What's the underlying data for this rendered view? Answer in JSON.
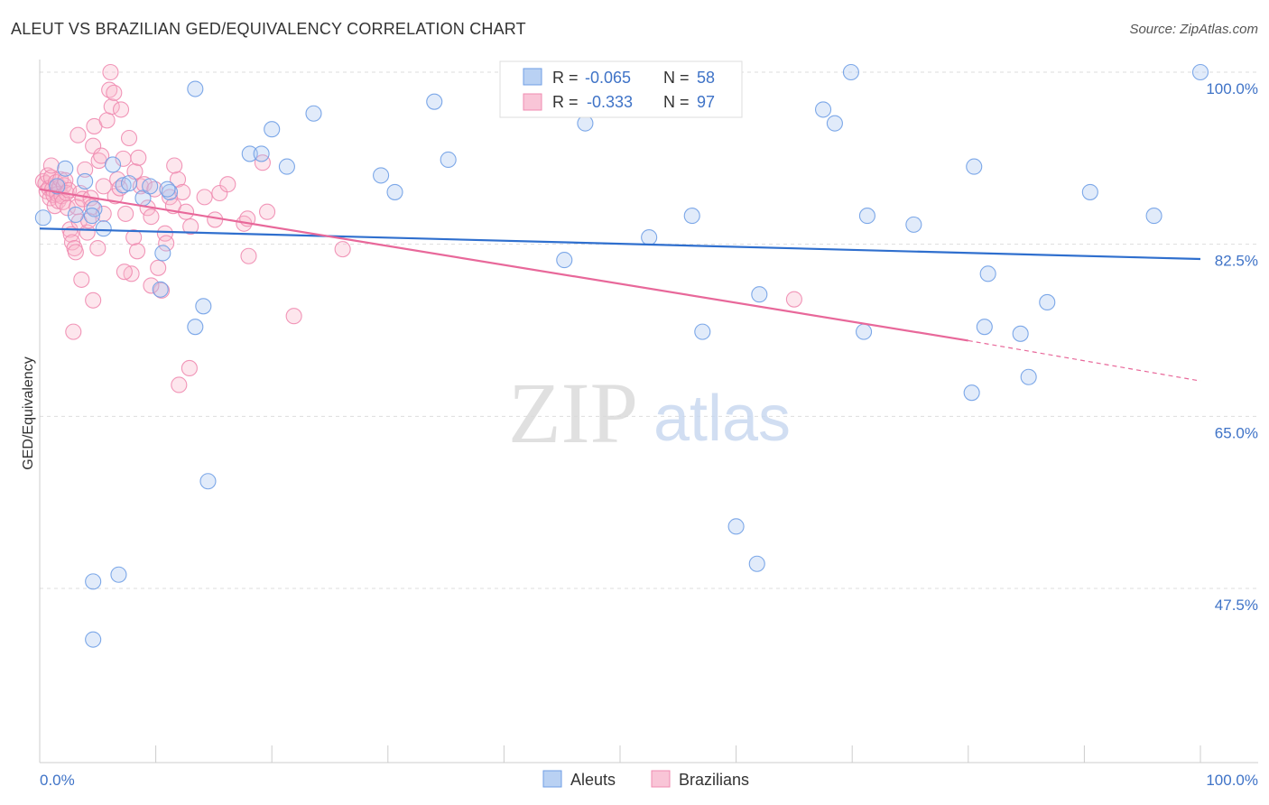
{
  "title": "ALEUT VS BRAZILIAN GED/EQUIVALENCY CORRELATION CHART",
  "source": "Source: ZipAtlas.com",
  "watermark": {
    "zip": "ZIP",
    "atlas": "atlas"
  },
  "colors": {
    "aleut": "#6f9ee6",
    "aleut_line": "#2f6fce",
    "brazil": "#f08bb0",
    "brazil_line": "#e8689a",
    "label_blue": "#3f73c7",
    "grid": "#dddddd"
  },
  "legend_top": [
    {
      "r_label": "R =",
      "r_value": "-0.065",
      "n_label": "N =",
      "n_value": "58"
    },
    {
      "r_label": "R =",
      "r_value": "-0.333",
      "n_label": "N =",
      "n_value": "97"
    }
  ],
  "chart_data": {
    "type": "scatter",
    "title": "ALEUT VS BRAZILIAN GED/EQUIVALENCY CORRELATION CHART",
    "xlabel": "",
    "ylabel": "GED/Equivalency",
    "xlim": [
      0,
      100
    ],
    "ylim": [
      31.5,
      102
    ],
    "x_tick_labels": [
      "0.0%",
      "100.0%"
    ],
    "y_ticks": [
      47.5,
      65.0,
      82.5,
      100.0
    ],
    "y_tick_labels": [
      "47.5%",
      "65.0%",
      "82.5%",
      "100.0%"
    ],
    "grid": true,
    "legend_placement": "bottom-center",
    "series": [
      {
        "name": "Aleuts",
        "r": -0.065,
        "n": 58,
        "trend": {
          "x": [
            0,
            100
          ],
          "y": [
            84.1,
            81.0
          ]
        },
        "points": [
          [
            13.4,
            98.3
          ],
          [
            0.3,
            85.2
          ],
          [
            1.5,
            88.4
          ],
          [
            2.2,
            90.2
          ],
          [
            3.1,
            85.5
          ],
          [
            3.9,
            88.9
          ],
          [
            4.7,
            86.1
          ],
          [
            5.5,
            84.1
          ],
          [
            6.3,
            90.6
          ],
          [
            7.2,
            88.5
          ],
          [
            7.7,
            88.7
          ],
          [
            8.9,
            87.2
          ],
          [
            9.5,
            88.4
          ],
          [
            10.6,
            81.6
          ],
          [
            11.2,
            87.8
          ],
          [
            13.4,
            74.1
          ],
          [
            14.1,
            76.2
          ],
          [
            14.5,
            58.4
          ],
          [
            10.4,
            77.9
          ],
          [
            18.1,
            91.7
          ],
          [
            19.1,
            91.7
          ],
          [
            20.0,
            94.2
          ],
          [
            21.3,
            90.4
          ],
          [
            23.6,
            95.8
          ],
          [
            29.4,
            89.5
          ],
          [
            30.6,
            87.8
          ],
          [
            34.0,
            97.0
          ],
          [
            35.2,
            91.1
          ],
          [
            47.0,
            94.8
          ],
          [
            45.2,
            80.9
          ],
          [
            52.5,
            83.2
          ],
          [
            56.2,
            85.4
          ],
          [
            57.0,
            100.0
          ],
          [
            57.1,
            73.6
          ],
          [
            60.0,
            53.8
          ],
          [
            61.8,
            50.0
          ],
          [
            62.0,
            77.4
          ],
          [
            67.5,
            96.2
          ],
          [
            68.5,
            94.8
          ],
          [
            69.9,
            100.0
          ],
          [
            71.0,
            73.6
          ],
          [
            71.3,
            85.4
          ],
          [
            75.3,
            84.5
          ],
          [
            81.4,
            74.1
          ],
          [
            80.3,
            67.4
          ],
          [
            80.5,
            90.4
          ],
          [
            81.7,
            79.5
          ],
          [
            84.5,
            73.4
          ],
          [
            85.2,
            69.0
          ],
          [
            86.8,
            76.6
          ],
          [
            90.5,
            87.8
          ],
          [
            96.0,
            85.4
          ],
          [
            100,
            100.0
          ],
          [
            4.5,
            85.4
          ],
          [
            4.6,
            48.2
          ],
          [
            6.8,
            48.9
          ],
          [
            4.6,
            42.3
          ],
          [
            11.0,
            88.1
          ]
        ]
      },
      {
        "name": "Brazilians",
        "r": -0.333,
        "n": 97,
        "trend": {
          "x": [
            0,
            80
          ],
          "y": [
            88.1,
            72.7
          ]
        },
        "trend_dashed": {
          "x": [
            80,
            100
          ],
          "y": [
            72.7,
            68.6
          ]
        },
        "points": [
          [
            0.3,
            88.9
          ],
          [
            0.5,
            88.7
          ],
          [
            0.6,
            87.9
          ],
          [
            0.7,
            89.5
          ],
          [
            0.8,
            88.2
          ],
          [
            0.9,
            87.2
          ],
          [
            1.0,
            89.3
          ],
          [
            1.1,
            88.1
          ],
          [
            1.2,
            87.5
          ],
          [
            1.3,
            86.4
          ],
          [
            1.4,
            88.8
          ],
          [
            1.5,
            87.6
          ],
          [
            1.6,
            86.9
          ],
          [
            1.7,
            88.3
          ],
          [
            1.8,
            89.1
          ],
          [
            1.9,
            87.4
          ],
          [
            2.0,
            86.8
          ],
          [
            2.1,
            88.5
          ],
          [
            2.2,
            89.0
          ],
          [
            2.3,
            87.7
          ],
          [
            2.4,
            86.2
          ],
          [
            2.5,
            88.0
          ],
          [
            2.6,
            84.0
          ],
          [
            2.7,
            83.5
          ],
          [
            2.8,
            82.7
          ],
          [
            3.0,
            82.1
          ],
          [
            3.1,
            81.7
          ],
          [
            3.2,
            86.3
          ],
          [
            3.4,
            84.8
          ],
          [
            3.5,
            87.7
          ],
          [
            3.6,
            78.9
          ],
          [
            3.7,
            87.1
          ],
          [
            3.9,
            90.1
          ],
          [
            4.1,
            83.7
          ],
          [
            4.2,
            84.9
          ],
          [
            4.4,
            87.2
          ],
          [
            4.5,
            86.3
          ],
          [
            4.6,
            92.5
          ],
          [
            4.7,
            94.5
          ],
          [
            5.0,
            82.1
          ],
          [
            5.1,
            91.0
          ],
          [
            5.3,
            91.5
          ],
          [
            5.5,
            85.6
          ],
          [
            5.8,
            95.1
          ],
          [
            6.0,
            98.2
          ],
          [
            6.2,
            96.5
          ],
          [
            6.5,
            87.4
          ],
          [
            6.7,
            89.1
          ],
          [
            6.9,
            88.2
          ],
          [
            7.2,
            91.2
          ],
          [
            7.4,
            85.6
          ],
          [
            7.7,
            93.3
          ],
          [
            7.9,
            79.5
          ],
          [
            8.1,
            83.2
          ],
          [
            8.4,
            81.8
          ],
          [
            8.7,
            88.4
          ],
          [
            9.0,
            88.6
          ],
          [
            9.3,
            86.2
          ],
          [
            9.6,
            85.3
          ],
          [
            9.9,
            88.1
          ],
          [
            10.2,
            80.1
          ],
          [
            10.5,
            77.8
          ],
          [
            10.8,
            83.6
          ],
          [
            11.2,
            87.3
          ],
          [
            11.5,
            86.4
          ],
          [
            11.9,
            89.1
          ],
          [
            12.3,
            87.8
          ],
          [
            12.6,
            85.8
          ],
          [
            13.0,
            84.3
          ],
          [
            6.1,
            100.0
          ],
          [
            6.4,
            97.9
          ],
          [
            7.0,
            96.2
          ],
          [
            8.2,
            89.9
          ],
          [
            8.5,
            91.3
          ],
          [
            11.6,
            90.5
          ],
          [
            12.9,
            69.9
          ],
          [
            15.1,
            85.0
          ],
          [
            15.5,
            87.7
          ],
          [
            17.6,
            84.6
          ],
          [
            17.9,
            85.1
          ],
          [
            18.0,
            81.3
          ],
          [
            19.2,
            90.8
          ],
          [
            19.6,
            85.8
          ],
          [
            21.9,
            75.2
          ],
          [
            26.1,
            82.0
          ],
          [
            65.0,
            76.9
          ],
          [
            2.9,
            73.6
          ],
          [
            4.6,
            76.8
          ],
          [
            7.3,
            79.7
          ],
          [
            9.6,
            78.3
          ],
          [
            12.0,
            68.2
          ],
          [
            3.3,
            93.6
          ],
          [
            5.5,
            88.4
          ],
          [
            10.9,
            82.6
          ],
          [
            14.2,
            87.3
          ],
          [
            16.2,
            88.6
          ],
          [
            1.0,
            90.5
          ]
        ]
      }
    ]
  }
}
